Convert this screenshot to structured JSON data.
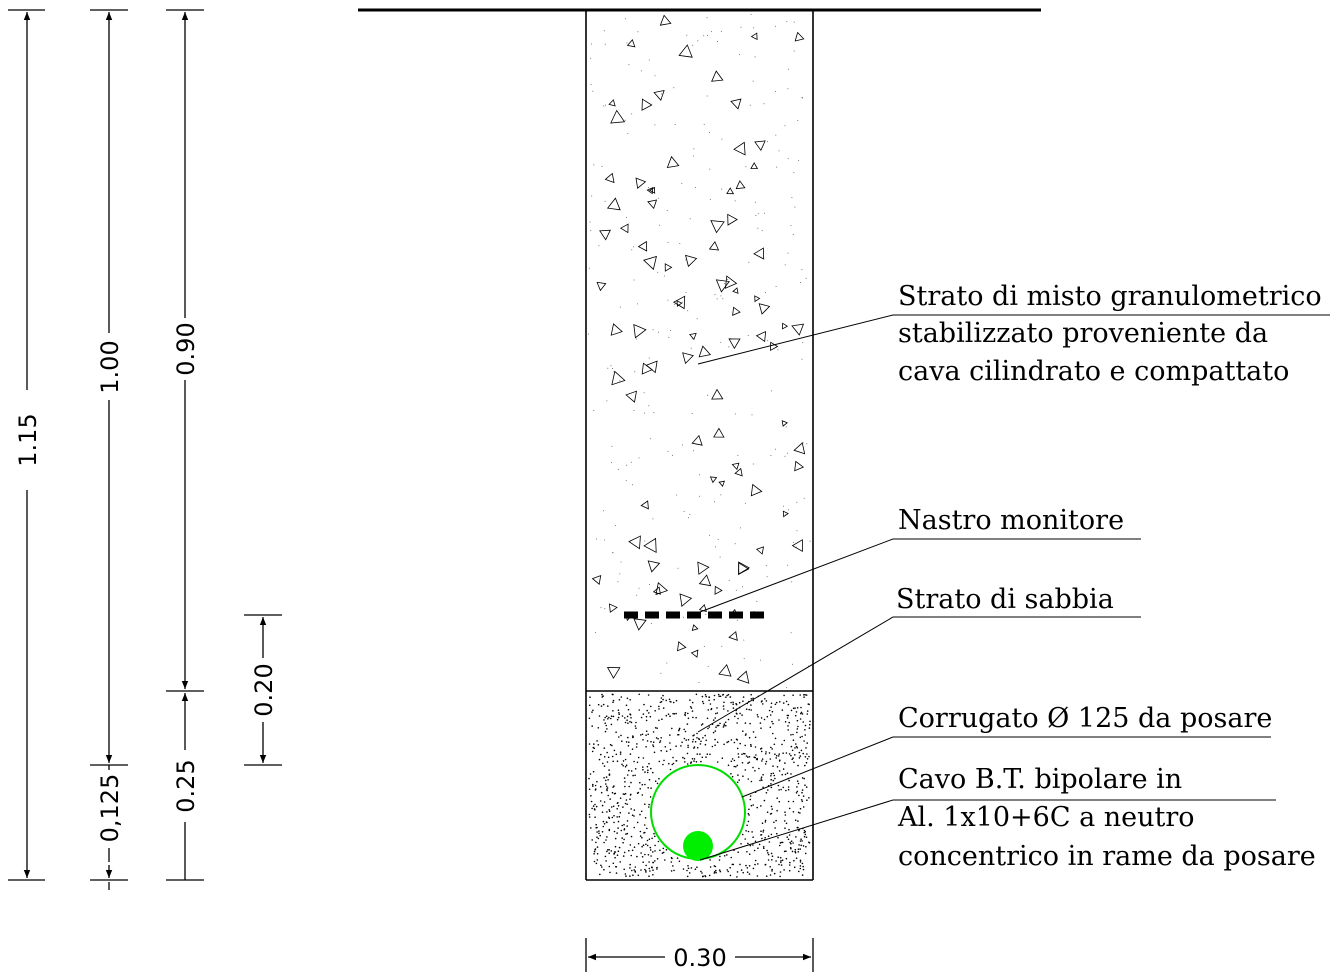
{
  "dimensions": {
    "total_depth": "1.15",
    "depth_to_tube": "1.00",
    "depth_to_sand": "0.90",
    "sand_above_tape": "0.20",
    "tube_axis": "0,125",
    "sand_layer": "0.25",
    "trench_width": "0.30"
  },
  "labels": {
    "fill_layer": {
      "line1": "Strato di misto granulometrico",
      "line2": "stabilizzato proveniente da",
      "line3": "cava cilindrato e compattato"
    },
    "warning_tape": {
      "line1": "Nastro monitore"
    },
    "sand_layer": {
      "line1": "Strato di sabbia"
    },
    "conduit": {
      "line1": "Corrugato Ø 125 da posare"
    },
    "cable": {
      "line1": "Cavo B.T. bipolare in",
      "line2": "Al. 1x10+6C a neutro",
      "line3": "concentrico in rame da posare"
    }
  },
  "colors": {
    "line": "#000000",
    "conduit": "#00dd00",
    "cable": "#00ee00"
  }
}
